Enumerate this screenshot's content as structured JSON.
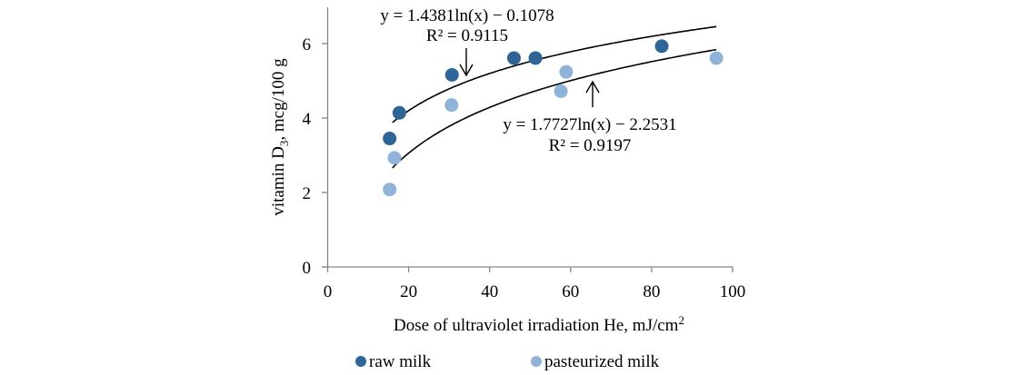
{
  "chart_data": {
    "type": "scatter",
    "title": "",
    "xlabel": "Dose of ultraviolet irradiation He, mJ/cm",
    "xlabel_superscript": "2",
    "ylabel_prefix": "vitamin D",
    "ylabel_subscript": "3",
    "ylabel_suffix": ", mcg/100 g",
    "xlim": [
      0,
      100
    ],
    "ylim": [
      0,
      7
    ],
    "xticks": [
      0,
      20,
      40,
      60,
      80,
      100
    ],
    "yticks": [
      0,
      2,
      4,
      6
    ],
    "xtick_labels": [
      "0",
      "20",
      "40",
      "60",
      "80",
      "100"
    ],
    "ytick_labels": [
      "0",
      "2",
      "4",
      "6"
    ],
    "grid": false,
    "legend_position": "bottom",
    "series": [
      {
        "name": "raw milk",
        "color": "#2e6596",
        "x": [
          15.3,
          17.7,
          30.7,
          46.0,
          51.3,
          82.5
        ],
        "y": [
          3.45,
          4.14,
          5.16,
          5.61,
          5.61,
          5.93
        ],
        "trendline": {
          "type": "logarithmic",
          "a": 1.4381,
          "b": -0.1078,
          "x_range": [
            16,
            96
          ],
          "equation": "y = 1.4381ln(x) − 0.1078",
          "r2": "R² = 0.9115",
          "arrow": "down"
        }
      },
      {
        "name": "pasteurized milk",
        "color": "#8fb3d9",
        "x": [
          15.3,
          16.5,
          30.6,
          57.6,
          58.9,
          96.0
        ],
        "y": [
          2.08,
          2.93,
          4.35,
          4.72,
          5.24,
          5.61
        ],
        "trendline": {
          "type": "logarithmic",
          "a": 1.7727,
          "b": -2.2531,
          "x_range": [
            16,
            96
          ],
          "equation": "y = 1.7727ln(x) − 2.2531",
          "r2": "R² = 0.9197",
          "arrow": "up"
        }
      }
    ]
  }
}
